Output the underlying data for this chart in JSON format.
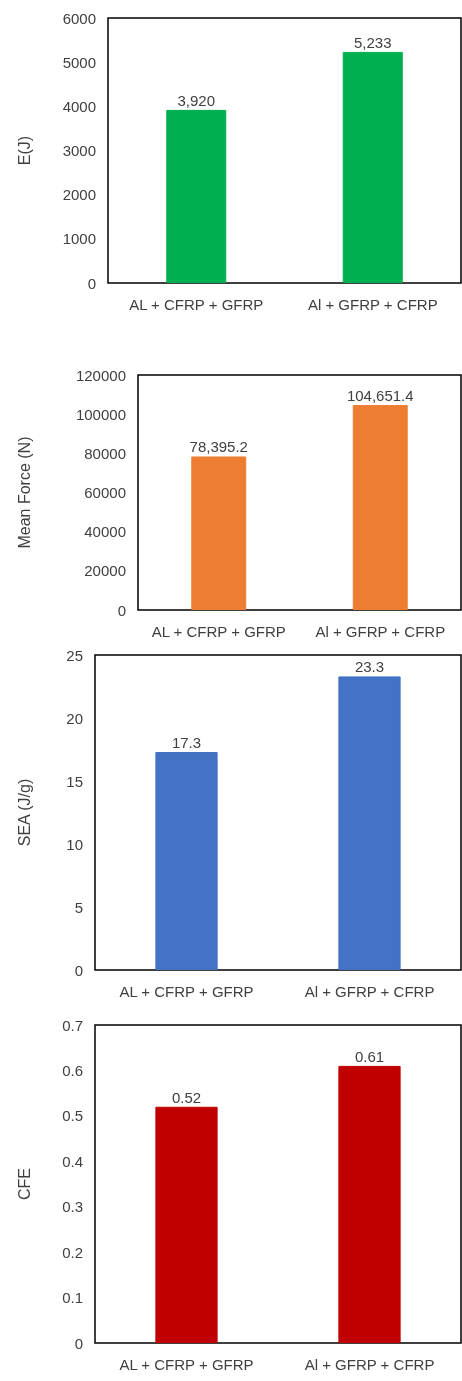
{
  "chart_data": [
    {
      "type": "bar",
      "ylabel": "E(J)",
      "categories": [
        "AL + CFRP + GFRP",
        "Al + GFRP + CFRP"
      ],
      "values": [
        3920,
        5233
      ],
      "value_labels": [
        "3,920",
        "5,233"
      ],
      "color": "#00b050",
      "ylim": [
        0,
        6000
      ],
      "yticks": [
        0,
        1000,
        2000,
        3000,
        4000,
        5000,
        6000
      ],
      "grid": false
    },
    {
      "type": "bar",
      "ylabel": "Mean Force (N)",
      "categories": [
        "AL + CFRP + GFRP",
        "Al + GFRP + CFRP"
      ],
      "values": [
        78395.2,
        104651.4
      ],
      "value_labels": [
        "78,395.2",
        "104,651.4"
      ],
      "color": "#ed7d31",
      "ylim": [
        0,
        120000
      ],
      "yticks": [
        0,
        20000,
        40000,
        60000,
        80000,
        100000,
        120000
      ],
      "grid": false
    },
    {
      "type": "bar",
      "ylabel": "SEA (J/g)",
      "categories": [
        "AL + CFRP + GFRP",
        "Al + GFRP + CFRP"
      ],
      "values": [
        17.3,
        23.3
      ],
      "color": "#4472c4",
      "ylim": [
        0,
        25
      ],
      "yticks": [
        0,
        5,
        10,
        15,
        20,
        25
      ],
      "data_labels": true,
      "grid": false
    },
    {
      "type": "bar",
      "ylabel": "CFE",
      "categories": [
        "AL + CFRP + GFRP",
        "Al + GFRP + CFRP"
      ],
      "values": [
        0.52,
        0.61
      ],
      "color": "#c00000",
      "ylim": [
        0,
        0.7
      ],
      "yticks": [
        0,
        0.1,
        0.2,
        0.3,
        0.4,
        0.5,
        0.6,
        0.7
      ],
      "data_labels": true,
      "grid": false
    }
  ]
}
